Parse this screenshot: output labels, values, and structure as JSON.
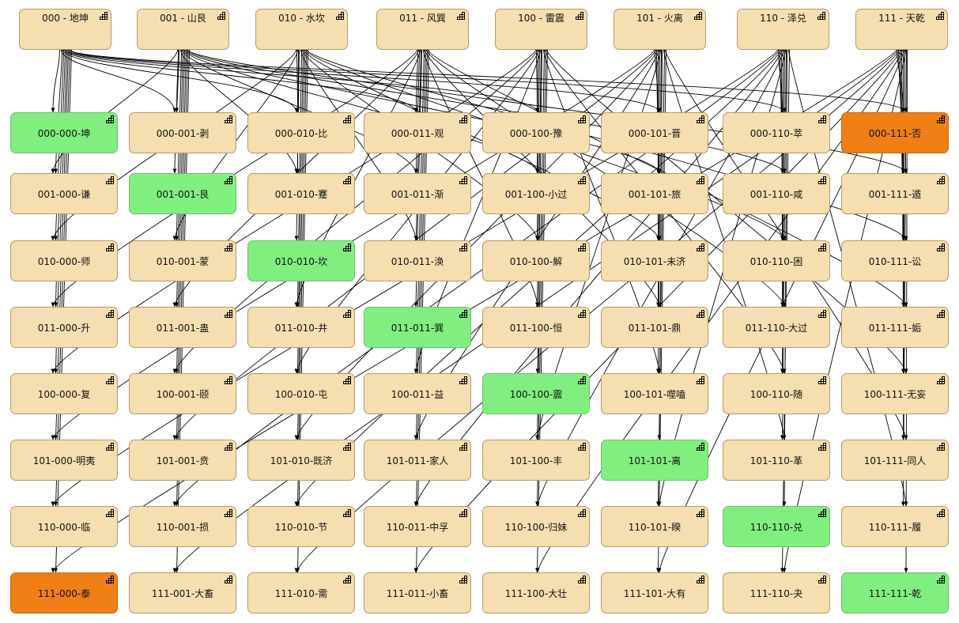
{
  "diagram": {
    "header_nodes": [
      {
        "id": "h000",
        "label": "000 - 地坤"
      },
      {
        "id": "h001",
        "label": "001 - 山艮"
      },
      {
        "id": "h010",
        "label": "010 - 水坎"
      },
      {
        "id": "h011",
        "label": "011 - 风巽"
      },
      {
        "id": "h100",
        "label": "100 - 雷震"
      },
      {
        "id": "h101",
        "label": "101 - 火离"
      },
      {
        "id": "h110",
        "label": "110 - 泽兑"
      },
      {
        "id": "h111",
        "label": "111 - 天乾"
      }
    ],
    "grid_rows": [
      [
        "000-000-坤",
        "000-001-剥",
        "000-010-比",
        "000-011-观",
        "000-100-豫",
        "000-101-晋",
        "000-110-萃",
        "000-111-否"
      ],
      [
        "001-000-谦",
        "001-001-艮",
        "001-010-蹇",
        "001-011-渐",
        "001-100-小过",
        "001-101-旅",
        "001-110-咸",
        "001-111-遁"
      ],
      [
        "010-000-师",
        "010-001-蒙",
        "010-010-坎",
        "010-011-涣",
        "010-100-解",
        "010-101-未济",
        "010-110-困",
        "010-111-讼"
      ],
      [
        "011-000-升",
        "011-001-蛊",
        "011-010-井",
        "011-011-巽",
        "011-100-恒",
        "011-101-鼎",
        "011-110-大过",
        "011-111-姤"
      ],
      [
        "100-000-复",
        "100-001-颐",
        "100-010-屯",
        "100-011-益",
        "100-100-震",
        "100-101-噬嗑",
        "100-110-随",
        "100-111-无妄"
      ],
      [
        "101-000-明夷",
        "101-001-贲",
        "101-010-既济",
        "101-011-家人",
        "101-100-丰",
        "101-101-离",
        "101-110-革",
        "101-111-同人"
      ],
      [
        "110-000-临",
        "110-001-损",
        "110-010-节",
        "110-011-中孚",
        "110-100-归妹",
        "110-101-睽",
        "110-110-兑",
        "110-111-履"
      ],
      [
        "111-000-泰",
        "111-001-大畜",
        "111-010-需",
        "111-011-小畜",
        "111-100-大壮",
        "111-101-大有",
        "111-110-夬",
        "111-111-乾"
      ]
    ],
    "highlight_green": [
      "000-000-坤",
      "001-001-艮",
      "010-010-坎",
      "011-011-巽",
      "100-100-震",
      "101-101-离",
      "110-110-兑",
      "111-111-乾"
    ],
    "highlight_orange": [
      "000-111-否",
      "111-000-泰"
    ],
    "colors": {
      "node_fill": "#f5deb0",
      "node_border": "#b49a6a",
      "green": "#80ef80",
      "orange": "#f07f16",
      "edge": "#000000"
    },
    "edge_rule": "parent trigram connects to every hexagram containing it as lower or upper part",
    "node_icon": "expand-icon"
  }
}
